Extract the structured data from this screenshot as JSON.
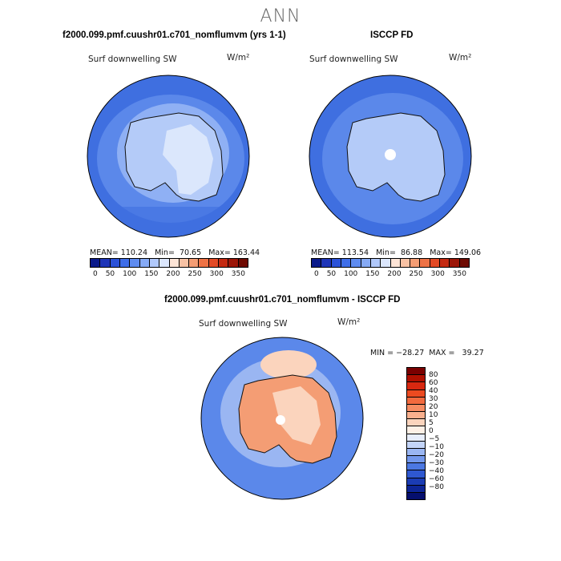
{
  "page_title": "ANN",
  "panel1": {
    "title": "f2000.099.pmf.cuushr01.c701_nomflumvm (yrs 1-1)",
    "field": "Surf downwelling SW",
    "units": "W/m²",
    "stats": "MEAN= 110.24   Min=  70.65   Max= 163.44"
  },
  "panel2": {
    "title": "ISCCP FD",
    "field": "Surf downwelling SW",
    "units": "W/m²",
    "stats": "MEAN= 113.54   Min=  86.88   Max= 149.06"
  },
  "panel3": {
    "title": "f2000.099.pmf.cuushr01.c701_nomflumvm - ISCCP FD",
    "field": "Surf downwelling SW",
    "units": "W/m²",
    "minmax": "MIN = −28.27  MAX =   39.27"
  },
  "colorbar_top": {
    "colors": [
      "#0a1a8a",
      "#1e35b8",
      "#2b52d8",
      "#3f6ee8",
      "#5f8cf0",
      "#86aaf5",
      "#b0c8fa",
      "#dbe6fc",
      "#fde4d6",
      "#f8c2a4",
      "#f49d74",
      "#ee7245",
      "#e34a25",
      "#c42a12",
      "#9c1608",
      "#6e0a02"
    ],
    "ticks": [
      "0",
      "50",
      "100",
      "150",
      "200",
      "250",
      "300",
      "350"
    ]
  },
  "colorbar_diff": {
    "colors": [
      "#7a0000",
      "#b01000",
      "#d82810",
      "#ec4a20",
      "#f26a3e",
      "#f68c62",
      "#f9b08e",
      "#fbd4bd",
      "#fdf0e6",
      "#e8eefc",
      "#c3d4f8",
      "#9ab6f2",
      "#7398ec",
      "#4c78e2",
      "#2f58d0",
      "#1b3cb4",
      "#0d2596",
      "#050f6e"
    ],
    "labels": [
      "80",
      "60",
      "40",
      "30",
      "20",
      "10",
      "5",
      "0",
      "−5",
      "−10",
      "−20",
      "−30",
      "−40",
      "−60",
      "−80"
    ]
  },
  "map_colors": {
    "ocean_dark": "#3f6fe0",
    "ocean_mid": "#5b88ea",
    "ocean_light": "#8fb0f4",
    "ice_light": "#c7d8fa",
    "ice_lighter": "#dbe7fc",
    "diff_ocean": "#5b88ea",
    "diff_land": "#f49d74",
    "diff_land_light": "#fbd4bd",
    "diff_core": "#fde4d6"
  }
}
